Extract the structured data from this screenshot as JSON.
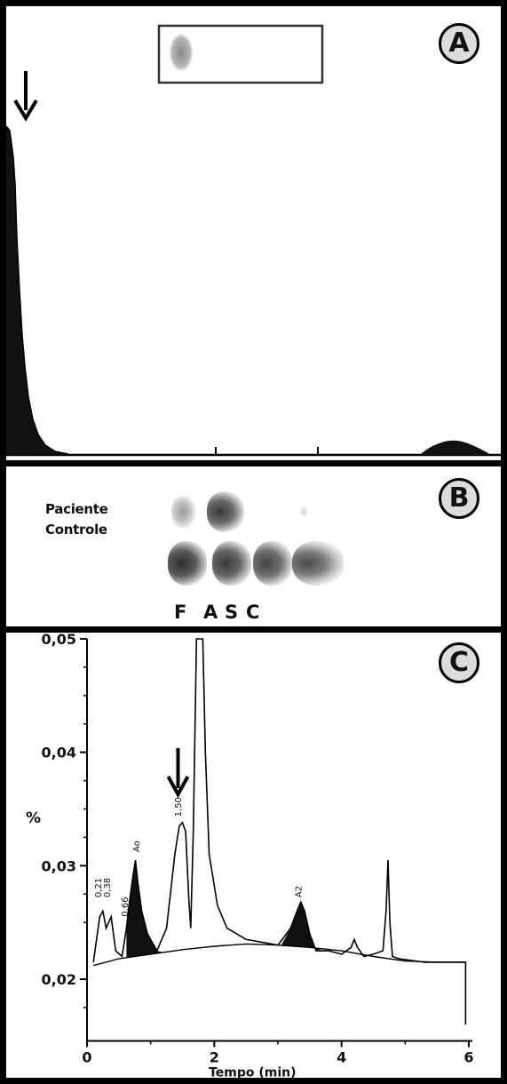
{
  "panel_a": {
    "badge": "A"
  },
  "panel_b": {
    "badge": "B",
    "row_labels": [
      "Paciente",
      "Controle"
    ],
    "lanes": [
      "F",
      "A",
      "S",
      "C"
    ]
  },
  "panel_c": {
    "badge": "C",
    "ylabel": "%",
    "xlabel": "Tempo (min)",
    "peak_labels": [
      "0,21",
      "0,38",
      "0,66",
      "Ao",
      "1,50",
      "A2"
    ]
  },
  "chart_data": {
    "type": "line",
    "xlabel": "Tempo (min)",
    "ylabel": "%",
    "xlim": [
      0,
      6
    ],
    "ylim": [
      0.015,
      0.05
    ],
    "xticks": [
      "0",
      "2",
      "4",
      "6"
    ],
    "yticks": [
      "0,02",
      "0,03",
      "0,04",
      "0,05"
    ],
    "series": [
      {
        "x": [
          0.1,
          0.2,
          0.25,
          0.3,
          0.38,
          0.45,
          0.55,
          0.62,
          0.66,
          0.72,
          0.76,
          0.8,
          0.86,
          0.95,
          1.1,
          1.25,
          1.38,
          1.45,
          1.5,
          1.55,
          1.6,
          1.63,
          1.67,
          1.72,
          1.78,
          1.82,
          1.86,
          1.92,
          2.05,
          2.2,
          2.5,
          3.0,
          3.2,
          3.3,
          3.36,
          3.42,
          3.5,
          3.6,
          3.8,
          4.0,
          4.15,
          4.2,
          4.25,
          4.35,
          4.5,
          4.65,
          4.7,
          4.73,
          4.76,
          4.8,
          4.9,
          5.3,
          5.8,
          5.95,
          5.95
        ],
        "values": [
          0.0215,
          0.0255,
          0.026,
          0.0245,
          0.0255,
          0.0225,
          0.022,
          0.0245,
          0.0265,
          0.029,
          0.0305,
          0.0285,
          0.026,
          0.024,
          0.0225,
          0.0245,
          0.031,
          0.0335,
          0.0338,
          0.033,
          0.027,
          0.0245,
          0.033,
          0.05,
          0.05,
          0.05,
          0.04,
          0.031,
          0.0265,
          0.0245,
          0.0235,
          0.023,
          0.0245,
          0.026,
          0.0268,
          0.026,
          0.024,
          0.0225,
          0.0225,
          0.0222,
          0.0228,
          0.0235,
          0.0228,
          0.022,
          0.0222,
          0.0225,
          0.026,
          0.0305,
          0.025,
          0.022,
          0.0218,
          0.0215,
          0.0215,
          0.0215,
          0.016
        ]
      },
      {
        "x": [
          0.1,
          0.5,
          1.0,
          1.5,
          2.0,
          2.5,
          3.0,
          3.5,
          4.0,
          4.5,
          5.0,
          5.5,
          5.95
        ],
        "values": [
          0.0212,
          0.0218,
          0.0222,
          0.0226,
          0.0229,
          0.0231,
          0.023,
          0.0228,
          0.0225,
          0.022,
          0.0216,
          0.0215,
          0.0215
        ]
      }
    ]
  }
}
